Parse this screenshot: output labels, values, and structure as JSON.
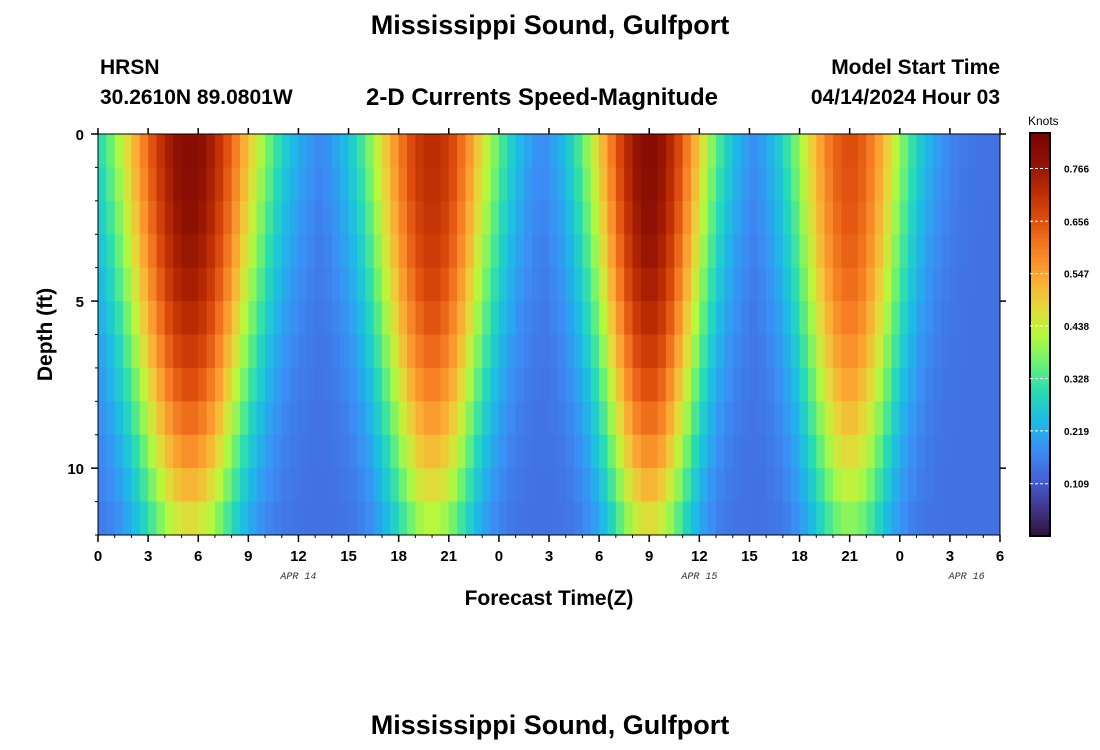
{
  "page": {
    "title": "Mississippi Sound, Gulfport",
    "station_code": "HRSN",
    "coordinates": "30.2610N  89.0801W",
    "subtitle": "2-D Currents Speed-Magnitude",
    "model_start_label": "Model Start Time",
    "model_start_value": "04/14/2024 Hour 03",
    "footer_title": "Mississippi Sound, Gulfport"
  },
  "colors": {
    "colormap": [
      "#30123b",
      "#3e378f",
      "#4662d8",
      "#3b8ef5",
      "#1dbae6",
      "#26dbb6",
      "#6bf173",
      "#b7f83c",
      "#e9d539",
      "#fca833",
      "#f57b22",
      "#dd4d0d",
      "#bb2b03",
      "#8e1103",
      "#7a0403"
    ]
  },
  "chart_data": {
    "type": "heatmap",
    "xlabel": "Forecast Time(Z)",
    "ylabel": "Depth (ft)",
    "x_ticks": [
      "0",
      "3",
      "6",
      "9",
      "12",
      "15",
      "18",
      "21",
      "0",
      "3",
      "6",
      "9",
      "12",
      "15",
      "18",
      "21",
      "0",
      "3",
      "6"
    ],
    "x_tick_hours": [
      0,
      3,
      6,
      9,
      12,
      15,
      18,
      21,
      24,
      27,
      30,
      33,
      36,
      39,
      42,
      45,
      48,
      51,
      54
    ],
    "xlim": [
      0,
      54
    ],
    "date_labels": [
      {
        "label": "APR 14",
        "hour": 12
      },
      {
        "label": "APR 15",
        "hour": 36
      },
      {
        "label": "APR 16",
        "hour": 52
      }
    ],
    "y_ticks": [
      {
        "label": "0",
        "value": 0
      },
      {
        "label": "5",
        "value": 5
      },
      {
        "label": "10",
        "value": 10
      }
    ],
    "ylim": [
      0,
      12
    ],
    "colorbar": {
      "title": "Knots",
      "ticks": [
        "0.766",
        "0.656",
        "0.547",
        "0.438",
        "0.328",
        "0.219",
        "0.109"
      ],
      "tick_values": [
        0.766,
        0.656,
        0.547,
        0.438,
        0.328,
        0.219,
        0.109
      ],
      "range": [
        0.0,
        0.84
      ]
    },
    "surface_peaks": [
      {
        "hour": 5.5,
        "speed": 0.8,
        "half_width_hours": 4.8
      },
      {
        "hour": 20.0,
        "speed": 0.72,
        "half_width_hours": 4.2
      },
      {
        "hour": 33.0,
        "speed": 0.8,
        "half_width_hours": 4.0
      },
      {
        "hour": 45.0,
        "speed": 0.66,
        "half_width_hours": 3.8
      }
    ],
    "slack_speed": 0.14,
    "bottom_speed_ratio": 0.55,
    "time_step_hours": 0.5,
    "depth_step_ft": 1.0
  }
}
